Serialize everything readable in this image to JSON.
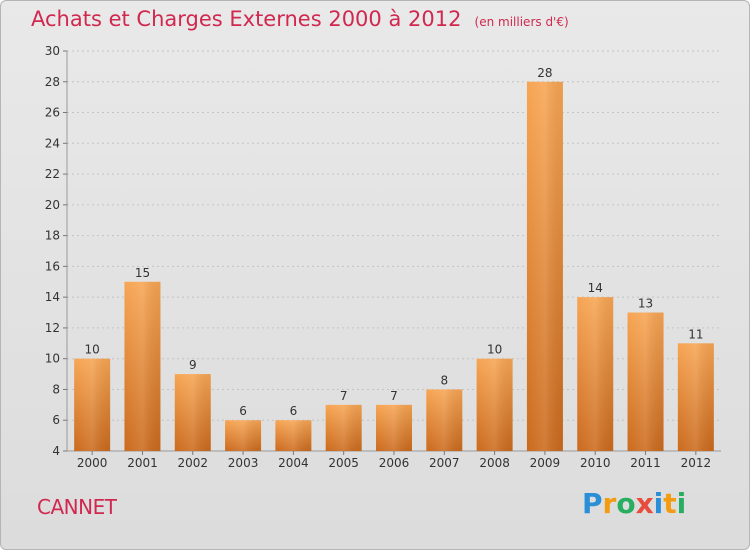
{
  "header": {
    "title": "Achats et Charges Externes 2000 à 2012",
    "subtitle": "(en milliers d'€)"
  },
  "footer": {
    "commune": "CANNET",
    "brand": "Proxiti",
    "brand_letters": [
      {
        "ch": "P",
        "color": "#2a8fd6"
      },
      {
        "ch": "r",
        "color": "#f39c12"
      },
      {
        "ch": "o",
        "color": "#27ae60"
      },
      {
        "ch": "x",
        "color": "#e74c3c"
      },
      {
        "ch": "i",
        "color": "#2a8fd6"
      },
      {
        "ch": "t",
        "color": "#f39c12"
      },
      {
        "ch": "i",
        "color": "#27ae60"
      }
    ]
  },
  "colors": {
    "accent": "#d0284f",
    "bar_light": "#f6a14f",
    "bar_dark": "#c9661a",
    "grid": "#bdbdbd",
    "axis_text": "#333333"
  },
  "chart_data": {
    "type": "bar",
    "categories": [
      "2000",
      "2001",
      "2002",
      "2003",
      "2004",
      "2005",
      "2006",
      "2007",
      "2008",
      "2009",
      "2010",
      "2011",
      "2012"
    ],
    "values": [
      10,
      15,
      9,
      6,
      6,
      7,
      7,
      8,
      10,
      28,
      14,
      13,
      11
    ],
    "ylim": [
      4,
      30
    ],
    "yticks": [
      4,
      6,
      8,
      10,
      12,
      14,
      16,
      18,
      20,
      22,
      24,
      26,
      28,
      30
    ],
    "grid": "horizontal dashed",
    "data_labels": true
  }
}
